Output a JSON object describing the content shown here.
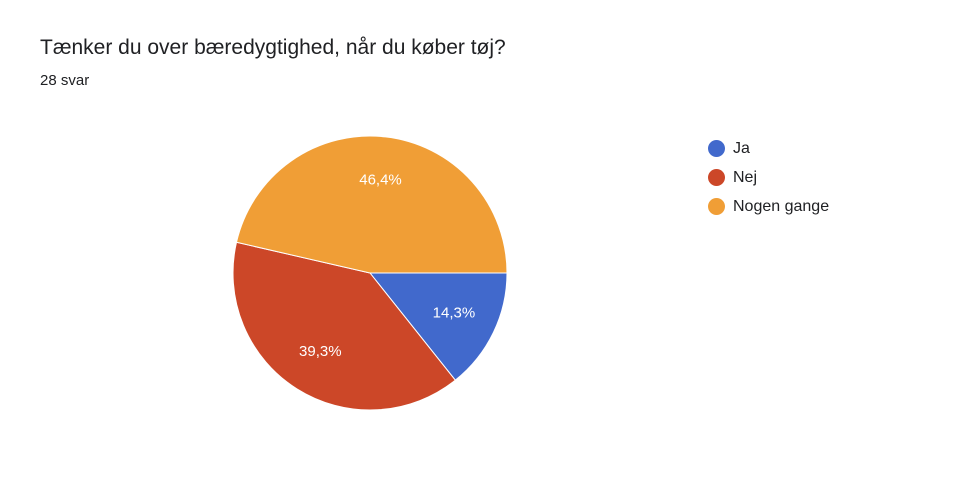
{
  "header": {
    "title": "Tænker du over bæredygtighed, når du køber tøj?",
    "subtitle": "28 svar"
  },
  "chart_data": {
    "type": "pie",
    "title": "Tænker du over bæredygtighed, når du køber tøj?",
    "subtitle": "28 svar",
    "legend_position": "right",
    "categories": [
      "Ja",
      "Nej",
      "Nogen gange"
    ],
    "values": [
      14.3,
      39.3,
      46.4
    ],
    "labels": [
      "14,3%",
      "39,3%",
      "46,4%"
    ],
    "colors": [
      "#4169CC",
      "#CC4728",
      "#F09E36"
    ]
  }
}
